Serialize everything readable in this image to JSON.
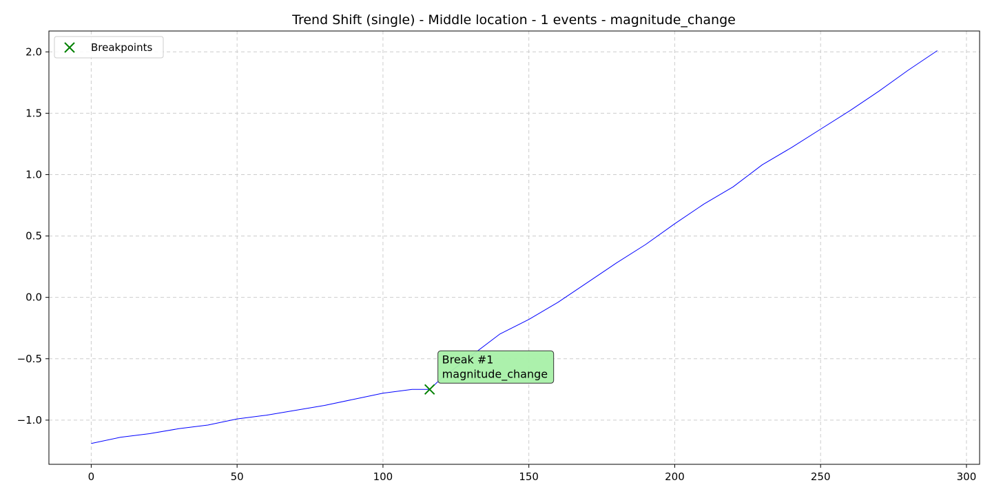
{
  "chart_data": {
    "type": "line",
    "title": "Trend Shift (single) - Middle location - 1 events - magnitude_change",
    "xlabel": "",
    "ylabel": "",
    "xlim": [
      -14.5,
      304.5
    ],
    "ylim": [
      -1.36,
      2.17
    ],
    "xticks": [
      0,
      50,
      100,
      150,
      200,
      250,
      300
    ],
    "xtick_labels": [
      "0",
      "50",
      "100",
      "150",
      "200",
      "250",
      "300"
    ],
    "yticks": [
      -1.0,
      -0.5,
      0.0,
      0.5,
      1.0,
      1.5,
      2.0
    ],
    "ytick_labels": [
      "−1.0",
      "−0.5",
      "0.0",
      "0.5",
      "1.0",
      "1.5",
      "2.0"
    ],
    "grid": true,
    "legend_position": "top-left",
    "series": [
      {
        "color": "#0000ff",
        "x": [
          0,
          10,
          20,
          30,
          40,
          50,
          60,
          70,
          80,
          90,
          100,
          110,
          116,
          120,
          130,
          140,
          150,
          160,
          170,
          180,
          190,
          200,
          210,
          220,
          230,
          240,
          250,
          260,
          270,
          280,
          290
        ],
        "y": [
          -1.19,
          -1.14,
          -1.11,
          -1.07,
          -1.04,
          -0.99,
          -0.96,
          -0.92,
          -0.88,
          -0.83,
          -0.78,
          -0.75,
          -0.75,
          -0.66,
          -0.48,
          -0.3,
          -0.18,
          -0.04,
          0.12,
          0.28,
          0.43,
          0.6,
          0.76,
          0.9,
          1.08,
          1.22,
          1.37,
          1.52,
          1.68,
          1.85,
          2.01
        ]
      }
    ],
    "breakpoints": {
      "legend_label": "Breakpoints",
      "color": "#008000",
      "x": [
        116
      ],
      "y": [
        -0.75
      ]
    },
    "annotations": [
      {
        "line1": "Break #1",
        "line2": "magnitude_change",
        "x": 116,
        "y": -0.75,
        "bg": "#a8f0a8"
      }
    ]
  }
}
